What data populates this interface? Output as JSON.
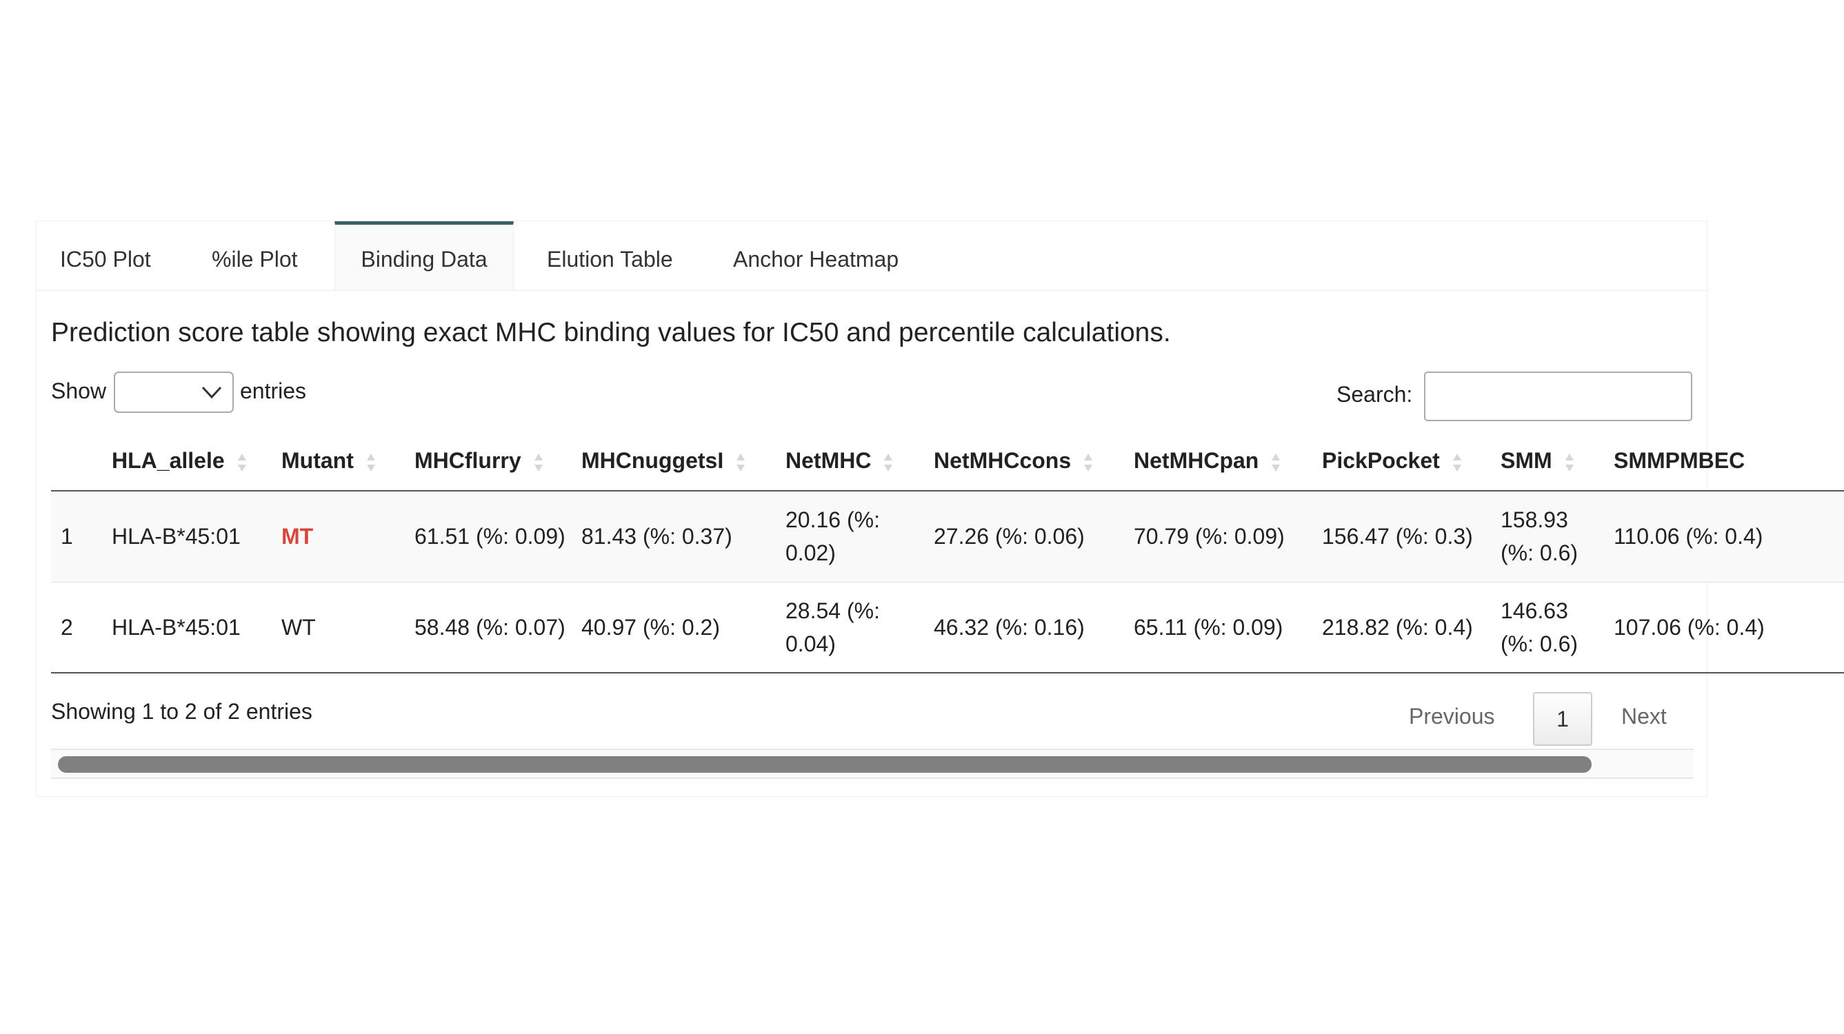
{
  "tabs": [
    {
      "label": "IC50 Plot"
    },
    {
      "label": "%ile Plot"
    },
    {
      "label": "Binding Data"
    },
    {
      "label": "Elution Table"
    },
    {
      "label": "Anchor Heatmap"
    }
  ],
  "active_tab": "Binding Data",
  "caption": "Prediction score table showing exact MHC binding values for IC50 and percentile calculations.",
  "length_control": {
    "show": "Show",
    "entries": "entries",
    "selected": ""
  },
  "search": {
    "label": "Search:",
    "value": ""
  },
  "table": {
    "columns": [
      "",
      "HLA_allele",
      "Mutant",
      "MHCflurry",
      "MHCnuggetsI",
      "NetMHC",
      "NetMHCcons",
      "NetMHCpan",
      "PickPocket",
      "SMM",
      "SMMPMBEC"
    ],
    "rows": [
      {
        "cells": [
          "1",
          "HLA-B*45:01",
          "MT",
          "61.51 (%: 0.09)",
          "81.43 (%: 0.37)",
          "20.16 (%: 0.02)",
          "27.26 (%: 0.06)",
          "70.79 (%: 0.09)",
          "156.47 (%: 0.3)",
          "158.93 (%: 0.6)",
          "110.06 (%: 0.4)"
        ]
      },
      {
        "cells": [
          "2",
          "HLA-B*45:01",
          "WT",
          "58.48 (%: 0.07)",
          "40.97 (%: 0.2)",
          "28.54 (%: 0.04)",
          "46.32 (%: 0.16)",
          "65.11 (%: 0.09)",
          "218.82 (%: 0.4)",
          "146.63 (%: 0.6)",
          "107.06 (%: 0.4)"
        ]
      }
    ]
  },
  "info": "Showing 1 to 2 of 2 entries",
  "pagination": {
    "previous": "Previous",
    "page": "1",
    "next": "Next"
  },
  "colors": {
    "accent": "#3c6161",
    "mutant": "#d9473c"
  }
}
